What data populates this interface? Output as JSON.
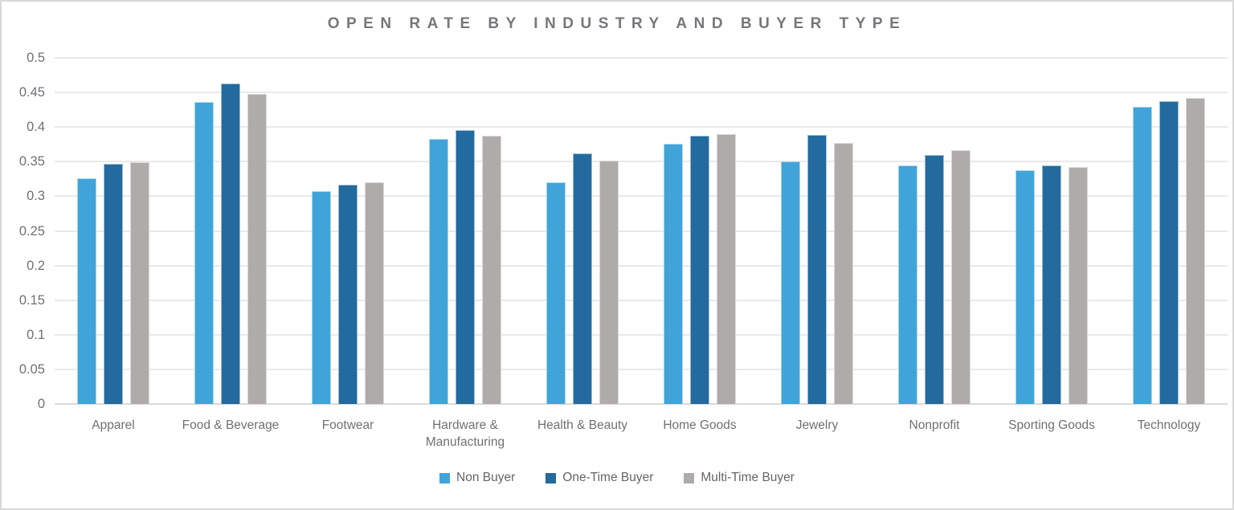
{
  "chart_data": {
    "type": "bar",
    "title": "OPEN RATE BY INDUSTRY AND BUYER TYPE",
    "categories": [
      "Apparel",
      "Food & Beverage",
      "Footwear",
      "Hardware & Manufacturing",
      "Health & Beauty",
      "Home Goods",
      "Jewelry",
      "Nonprofit",
      "Sporting Goods",
      "Technology"
    ],
    "series": [
      {
        "name": "Non Buyer",
        "color": "#41A4D8",
        "values": [
          0.326,
          0.436,
          0.308,
          0.383,
          0.32,
          0.376,
          0.35,
          0.344,
          0.338,
          0.429
        ]
      },
      {
        "name": "One-Time Buyer",
        "color": "#236A9E",
        "values": [
          0.347,
          0.463,
          0.317,
          0.396,
          0.362,
          0.387,
          0.389,
          0.36,
          0.344,
          0.437
        ]
      },
      {
        "name": "Multi-Time Buyer",
        "color": "#B0ABAB",
        "values": [
          0.349,
          0.448,
          0.32,
          0.388,
          0.351,
          0.39,
          0.377,
          0.367,
          0.342,
          0.442
        ]
      }
    ],
    "ylabel": "",
    "xlabel": "",
    "ylim": [
      0,
      0.5
    ],
    "y_tick_step": 0.05,
    "y_tick_labels": [
      "0",
      "0.05",
      "0.1",
      "0.15",
      "0.2",
      "0.25",
      "0.3",
      "0.35",
      "0.4",
      "0.45",
      "0.5"
    ],
    "grid": true,
    "legend_position": "bottom"
  },
  "colors": {
    "gridline": "#E9E9E9",
    "zero_line": "#DADADA",
    "card_border": "#D8D8D8",
    "title_text": "#76777A",
    "axis_text": "#6E7072",
    "category_text": "#707070",
    "legend_text": "#656565",
    "background": "#FFFFFF"
  }
}
